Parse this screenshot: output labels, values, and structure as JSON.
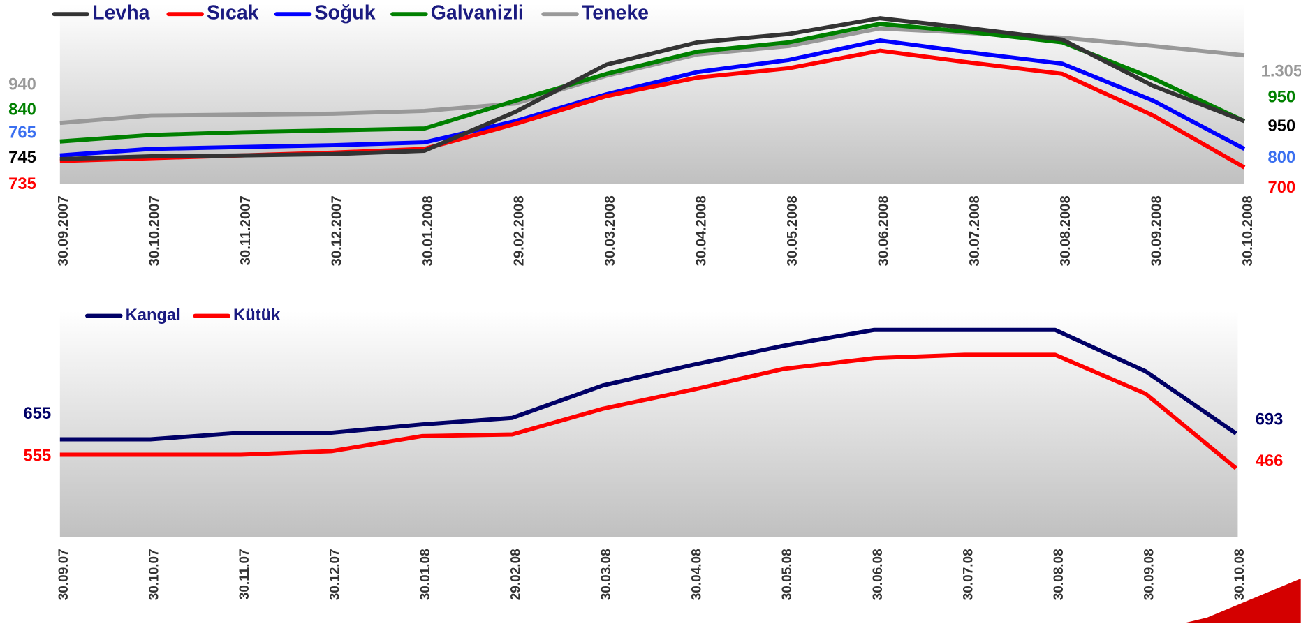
{
  "chart_data": [
    {
      "type": "line",
      "categories": [
        "30.09.2007",
        "30.10.2007",
        "30.11.2007",
        "30.12.2007",
        "30.01.2008",
        "29.02.2008",
        "30.03.2008",
        "30.04.2008",
        "30.05.2008",
        "30.06.2008",
        "30.07.2008",
        "30.08.2008",
        "30.09.2008",
        "30.10.2008"
      ],
      "series": [
        {
          "name": "Levha",
          "color": "#333333",
          "label_color": "#000000",
          "values": [
            745,
            760,
            765,
            772,
            790,
            1000,
            1255,
            1375,
            1420,
            1505,
            1450,
            1390,
            1140,
            950
          ],
          "value_labels": [
            "745",
            null,
            null,
            null,
            null,
            null,
            null,
            null,
            null,
            null,
            null,
            null,
            null,
            "950"
          ]
        },
        {
          "name": "Sıcak",
          "color": "#ff0000",
          "label_color": "#ff0000",
          "values": [
            735,
            750,
            765,
            780,
            800,
            935,
            1085,
            1185,
            1235,
            1330,
            1265,
            1205,
            980,
            700
          ],
          "value_labels": [
            "735",
            null,
            null,
            null,
            null,
            null,
            null,
            null,
            null,
            null,
            null,
            null,
            null,
            "700"
          ]
        },
        {
          "name": "Soğuk",
          "color": "#0000ff",
          "label_color": "#3a6ff0",
          "values": [
            765,
            800,
            810,
            820,
            835,
            950,
            1095,
            1215,
            1280,
            1385,
            1320,
            1260,
            1060,
            800
          ],
          "value_labels": [
            "765",
            null,
            null,
            null,
            null,
            null,
            null,
            null,
            null,
            null,
            null,
            null,
            null,
            "800"
          ]
        },
        {
          "name": "Galvanizli",
          "color": "#008000",
          "label_color": "#008000",
          "values": [
            840,
            875,
            890,
            900,
            910,
            1060,
            1205,
            1325,
            1375,
            1475,
            1430,
            1375,
            1180,
            950
          ],
          "value_labels": [
            "840",
            null,
            null,
            null,
            null,
            null,
            null,
            null,
            null,
            null,
            null,
            null,
            null,
            "950"
          ]
        },
        {
          "name": "Teneke",
          "color": "#999999",
          "label_color": "#999999",
          "values": [
            940,
            980,
            985,
            990,
            1005,
            1045,
            1195,
            1310,
            1355,
            1450,
            1425,
            1400,
            1355,
            1305
          ],
          "value_labels": [
            "940",
            null,
            null,
            null,
            null,
            null,
            null,
            null,
            null,
            null,
            null,
            null,
            null,
            "1.305"
          ]
        }
      ]
    },
    {
      "type": "line",
      "categories": [
        "30.09.07",
        "30.10.07",
        "30.11.07",
        "30.12.07",
        "30.01.08",
        "29.02.08",
        "30.03.08",
        "30.04.08",
        "30.05.08",
        "30.06.08",
        "30.07.08",
        "30.08.08",
        "30.09.08",
        "30.10.08"
      ],
      "series": [
        {
          "name": "Kangal",
          "color": "#000066",
          "label_color": "#000066",
          "values": [
            655,
            655,
            698,
            698,
            752,
            795,
            1006,
            1141,
            1265,
            1368,
            1368,
            1368,
            1098,
            693
          ],
          "value_labels": [
            "655",
            null,
            null,
            null,
            null,
            null,
            null,
            null,
            null,
            null,
            null,
            null,
            null,
            "693"
          ]
        },
        {
          "name": "Kütük",
          "color": "#ff0000",
          "label_color": "#ff0000",
          "values": [
            555,
            555,
            555,
            578,
            676,
            687,
            854,
            979,
            1114,
            1184,
            1206,
            1206,
            952,
            466
          ],
          "value_labels": [
            "555",
            null,
            null,
            null,
            null,
            null,
            null,
            null,
            null,
            null,
            null,
            null,
            null,
            "466"
          ]
        }
      ]
    }
  ]
}
